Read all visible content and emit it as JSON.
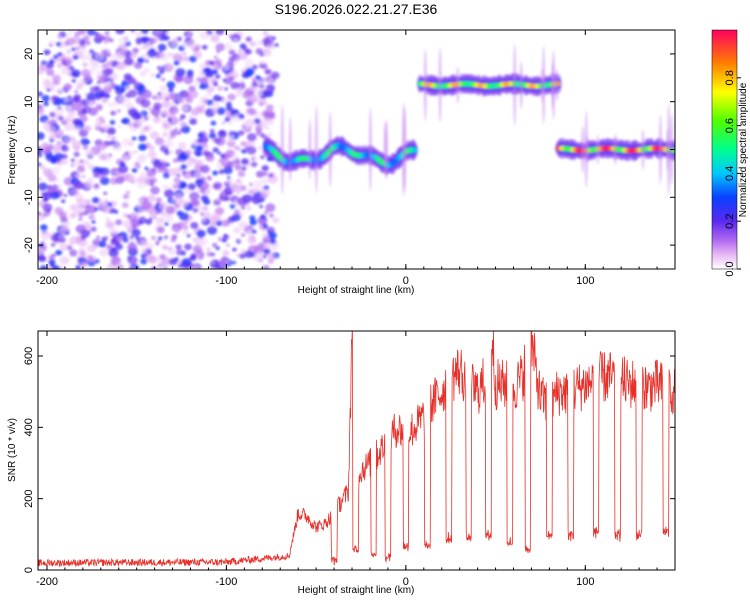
{
  "title": "S196.2026.022.21.27.E36",
  "colors": {
    "snr_line": "#e8302a",
    "noise": "#8a2be2",
    "background": "#ffffff"
  },
  "chart_data": [
    {
      "type": "heatmap",
      "name": "spectrogram",
      "xlabel": "Height of straight line (km)",
      "ylabel": "Frequency (Hz)",
      "xlim": [
        -205,
        150
      ],
      "ylim": [
        -25,
        25
      ],
      "x_ticks": [
        -200,
        -100,
        0,
        100
      ],
      "y_ticks": [
        20,
        10,
        0,
        -10,
        -20
      ],
      "colorbar": {
        "label": "Normalized spectral amplitude",
        "range": [
          0.0,
          1.0
        ],
        "ticks": [
          0.0,
          0.2,
          0.4,
          0.6,
          0.8
        ]
      },
      "segments": [
        {
          "x_start": -205,
          "x_end": -78,
          "kind": "noise",
          "freq_hz": null,
          "amplitude": 0.15
        },
        {
          "x_start": -78,
          "x_end": 5,
          "kind": "wandering_tone",
          "freq_hz": 0,
          "amplitude": 0.5
        },
        {
          "x_start": 8,
          "x_end": 85,
          "kind": "tone",
          "freq_hz": 13.5,
          "amplitude": 0.75
        },
        {
          "x_start": 85,
          "x_end": 150,
          "kind": "tone",
          "freq_hz": 0,
          "amplitude": 0.9
        }
      ]
    },
    {
      "type": "line",
      "name": "snr",
      "xlabel": "Height of straight line (km)",
      "ylabel": "SNR (10 * v/v)",
      "xlim": [
        -205,
        150
      ],
      "ylim": [
        0,
        670
      ],
      "x_ticks": [
        -200,
        -100,
        0,
        100
      ],
      "y_ticks": [
        0,
        200,
        400,
        600
      ],
      "series": [
        {
          "name": "SNR",
          "x": [
            -205,
            -100,
            -65,
            -60,
            -55,
            -50,
            -45,
            -40,
            -35,
            -32,
            -30,
            -28,
            -25,
            -20,
            -15,
            -10,
            -5,
            0,
            5,
            10,
            15,
            20,
            25,
            30,
            35,
            40,
            45,
            48,
            50,
            55,
            60,
            65,
            69,
            75,
            80,
            85,
            90,
            95,
            100,
            105,
            110,
            115,
            120,
            125,
            130,
            135,
            140,
            145,
            150
          ],
          "values": [
            20,
            22,
            40,
            160,
            150,
            120,
            130,
            160,
            200,
            220,
            670,
            230,
            280,
            300,
            330,
            360,
            400,
            380,
            400,
            430,
            470,
            500,
            540,
            560,
            520,
            500,
            540,
            660,
            520,
            520,
            510,
            540,
            665,
            480,
            470,
            500,
            500,
            510,
            520,
            530,
            540,
            540,
            530,
            520,
            530,
            510,
            520,
            510,
            500
          ]
        },
        {
          "name": "dropouts",
          "x": [
            -40,
            -28,
            -18,
            -10,
            0,
            12,
            24,
            35,
            46,
            58,
            68,
            80,
            92,
            106,
            118,
            130,
            145
          ],
          "values": [
            20,
            50,
            40,
            30,
            60,
            60,
            80,
            80,
            90,
            70,
            50,
            90,
            90,
            100,
            90,
            90,
            100
          ]
        }
      ]
    }
  ]
}
